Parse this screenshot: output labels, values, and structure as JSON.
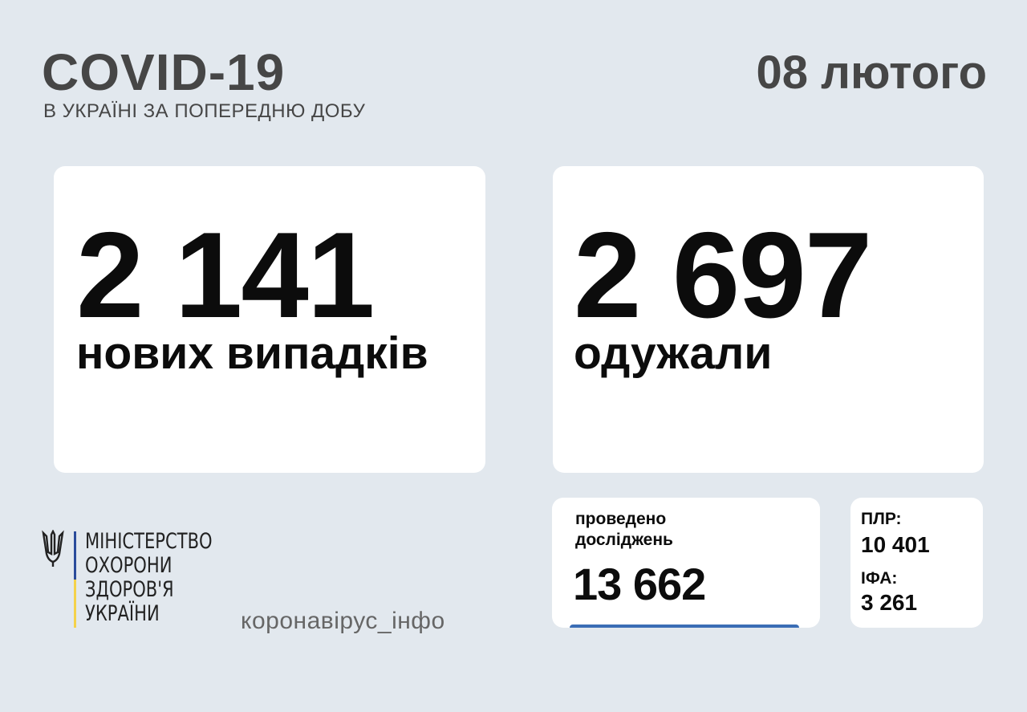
{
  "header": {
    "title": "COVID-19",
    "subtitle": "В УКРАЇНІ ЗА ПОПЕРЕДНЮ ДОБУ",
    "date": "08 лютого"
  },
  "cards": {
    "new_cases": {
      "value": "2 141",
      "label": "нових випадків"
    },
    "recovered": {
      "value": "2 697",
      "label": "одужали"
    },
    "tests": {
      "label_line1": "проведено",
      "label_line2": "досліджень",
      "value": "13 662"
    },
    "breakdown": {
      "pcr_label": "ПЛР:",
      "pcr_value": "10 401",
      "ifa_label": "ІФА:",
      "ifa_value": "3 261"
    }
  },
  "footer": {
    "ministry_lines": [
      "МІНІСТЕРСТВО",
      "ОХОРОНИ",
      "ЗДОРОВ'Я",
      "УКРАЇНИ"
    ],
    "logo_icon": "trident-icon",
    "site": "коронавірус_інфо"
  },
  "colors": {
    "background": "#e2e8ee",
    "accent_blue": "#3a6db5",
    "flag_blue": "#2a4b9b",
    "flag_yellow": "#f4d24a"
  }
}
